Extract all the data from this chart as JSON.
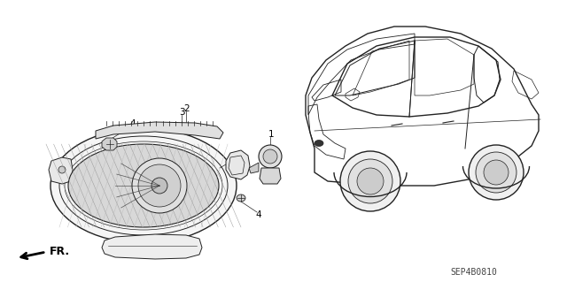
{
  "bg_color": "#ffffff",
  "fig_width": 6.4,
  "fig_height": 3.19,
  "dpi": 100,
  "fr_arrow_text": "FR.",
  "catalog_code": "SEP4B0810",
  "line_color": "#222222",
  "gray_light": "#cccccc",
  "gray_mid": "#aaaaaa",
  "gray_dark": "#666666"
}
